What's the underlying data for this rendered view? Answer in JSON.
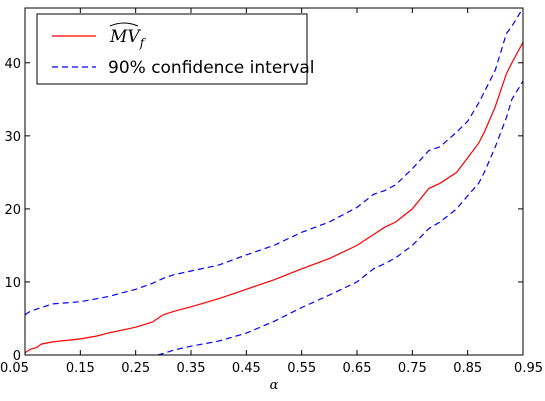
{
  "chart_data": {
    "type": "line",
    "title": "",
    "xlabel": "α",
    "ylabel": "",
    "xlim": [
      0.05,
      0.95
    ],
    "ylim": [
      0,
      47.5
    ],
    "xticks": [
      "0.05",
      "0.15",
      "0.25",
      "0.35",
      "0.45",
      "0.55",
      "0.65",
      "0.75",
      "0.85",
      "0.95"
    ],
    "yticks": [
      "0",
      "10",
      "20",
      "30",
      "40"
    ],
    "grid": false,
    "legend": "top-left",
    "colors": {
      "estimate": "#ff0000",
      "interval": "#0000ff"
    },
    "series": [
      {
        "name": "MV_f (hat)",
        "style": "solid",
        "x": [
          0.05,
          0.06,
          0.07,
          0.08,
          0.1,
          0.15,
          0.18,
          0.2,
          0.25,
          0.28,
          0.3,
          0.32,
          0.35,
          0.4,
          0.45,
          0.5,
          0.55,
          0.6,
          0.65,
          0.68,
          0.7,
          0.72,
          0.75,
          0.78,
          0.8,
          0.83,
          0.85,
          0.87,
          0.88,
          0.9,
          0.92,
          0.93,
          0.95
        ],
        "values": [
          0.3,
          0.8,
          1.0,
          1.5,
          1.8,
          2.2,
          2.6,
          3.0,
          3.8,
          4.5,
          5.5,
          6.0,
          6.6,
          7.7,
          9.0,
          10.3,
          11.8,
          13.2,
          15.0,
          16.5,
          17.5,
          18.2,
          20.0,
          22.8,
          23.5,
          25.0,
          27.0,
          29.0,
          30.5,
          34.0,
          38.5,
          40.0,
          42.8
        ]
      },
      {
        "name": "90% confidence interval (upper)",
        "style": "dashed",
        "x": [
          0.05,
          0.06,
          0.08,
          0.1,
          0.15,
          0.18,
          0.2,
          0.25,
          0.28,
          0.3,
          0.32,
          0.35,
          0.4,
          0.45,
          0.5,
          0.55,
          0.6,
          0.65,
          0.68,
          0.7,
          0.72,
          0.75,
          0.78,
          0.8,
          0.83,
          0.85,
          0.87,
          0.88,
          0.9,
          0.92,
          0.93,
          0.95
        ],
        "values": [
          5.5,
          6.0,
          6.5,
          7.0,
          7.3,
          7.7,
          8.0,
          9.0,
          9.8,
          10.5,
          11.0,
          11.5,
          12.3,
          13.7,
          15.0,
          16.8,
          18.2,
          20.2,
          22.0,
          22.5,
          23.3,
          25.5,
          28.0,
          28.5,
          30.5,
          32.0,
          34.5,
          36.0,
          39.0,
          44.0,
          45.0,
          47.5
        ]
      },
      {
        "name": "90% confidence interval (lower)",
        "style": "dashed",
        "x": [
          0.29,
          0.3,
          0.32,
          0.35,
          0.4,
          0.45,
          0.5,
          0.55,
          0.6,
          0.65,
          0.68,
          0.7,
          0.72,
          0.75,
          0.78,
          0.8,
          0.83,
          0.85,
          0.87,
          0.88,
          0.9,
          0.92,
          0.93,
          0.95
        ],
        "values": [
          0.0,
          0.2,
          0.7,
          1.2,
          1.9,
          3.0,
          4.6,
          6.5,
          8.2,
          10.0,
          11.8,
          12.5,
          13.3,
          15.0,
          17.3,
          18.2,
          20.0,
          21.8,
          23.5,
          25.0,
          28.5,
          32.5,
          35.0,
          37.5
        ]
      }
    ],
    "legend_entries": [
      {
        "label_text": "MV",
        "label_sub": "f",
        "style": "solid"
      },
      {
        "label_text": "90% confidence interval",
        "style": "dashed"
      }
    ]
  }
}
